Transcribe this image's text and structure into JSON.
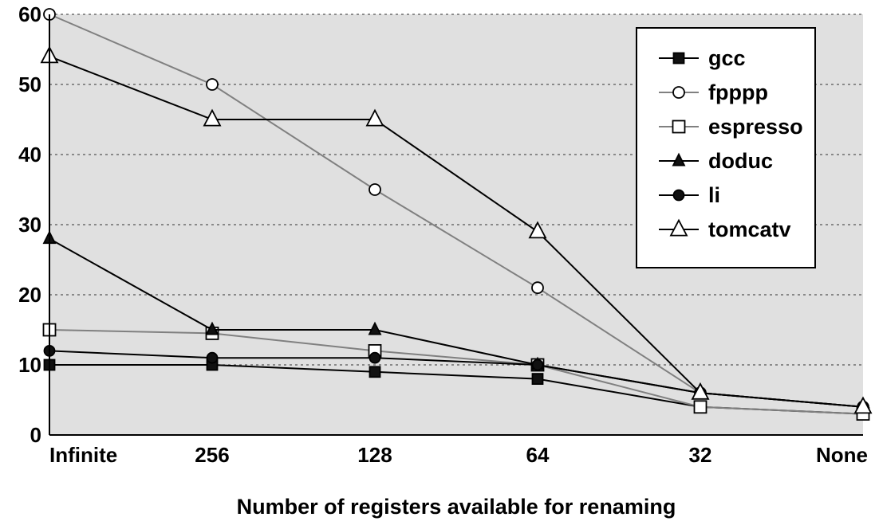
{
  "chart_data": {
    "type": "line",
    "xlabel": "Number of registers available for renaming",
    "ylabel": "",
    "title": "",
    "categories": [
      "Infinite",
      "256",
      "128",
      "64",
      "32",
      "None"
    ],
    "ylim": [
      0,
      60
    ],
    "yticks": [
      0,
      10,
      20,
      30,
      40,
      50,
      60
    ],
    "grid": "horizontal dotted",
    "legend_position": "top-right",
    "background_color": "#e0e0e0",
    "series": [
      {
        "name": "gcc",
        "marker": "square-filled",
        "color": "#000000",
        "values": [
          10,
          10,
          9,
          8,
          4,
          3
        ]
      },
      {
        "name": "fpppp",
        "marker": "circle-open",
        "color": "#808080",
        "values": [
          60,
          50,
          35,
          21,
          6,
          4
        ]
      },
      {
        "name": "espresso",
        "marker": "square-open",
        "color": "#808080",
        "values": [
          15,
          14.5,
          12,
          10,
          4,
          3
        ]
      },
      {
        "name": "doduc",
        "marker": "triangle-filled",
        "color": "#000000",
        "values": [
          28,
          15,
          15,
          10,
          6,
          4
        ]
      },
      {
        "name": "li",
        "marker": "circle-filled",
        "color": "#000000",
        "values": [
          12,
          11,
          11,
          10,
          6,
          4
        ]
      },
      {
        "name": "tomcatv",
        "marker": "triangle-open",
        "color": "#000000",
        "values": [
          54,
          45,
          45,
          29,
          6,
          4
        ]
      }
    ]
  }
}
